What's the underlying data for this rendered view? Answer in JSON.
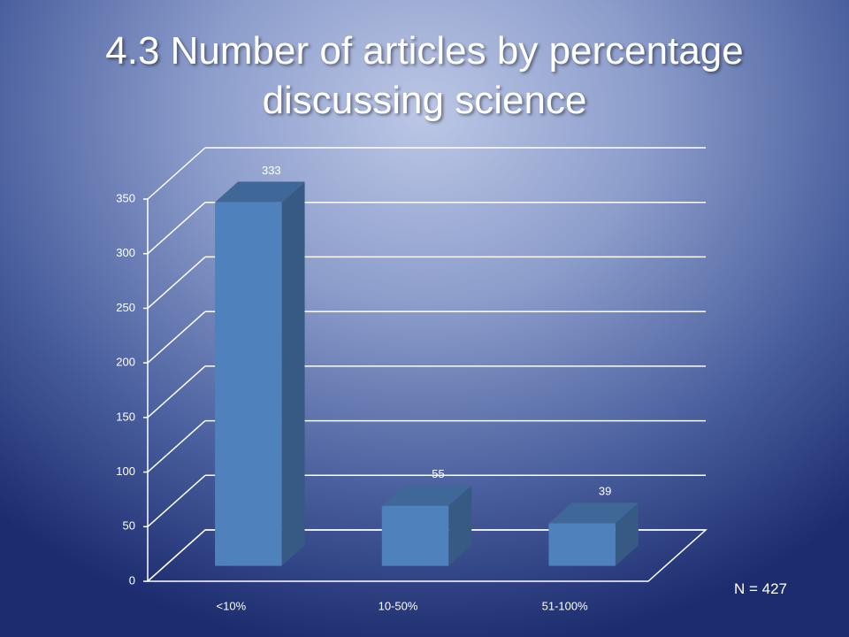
{
  "chart_data": {
    "type": "bar3d",
    "title": "4.3 Number of articles by percentage discussing science",
    "categories": [
      "<10%",
      "10-50%",
      "51-100%"
    ],
    "values": [
      333,
      55,
      39
    ],
    "color": "#4f81bd",
    "ylim": [
      0,
      350
    ],
    "yticks": [
      0,
      50,
      100,
      150,
      200,
      250,
      300,
      350
    ],
    "grid": true,
    "annotation": "N = 427"
  }
}
